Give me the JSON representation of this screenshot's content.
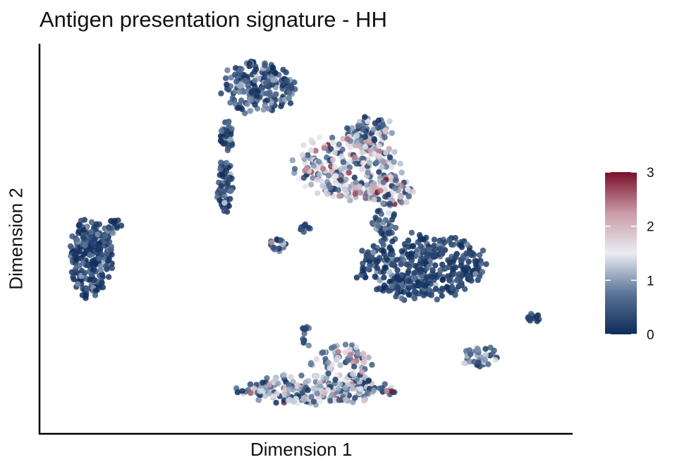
{
  "chart_data": {
    "type": "scatter",
    "title": "Antigen presentation signature - HH",
    "xlabel": "Dimension 1",
    "ylabel": "Dimension 2",
    "color_scale": {
      "min": 0,
      "max": 3,
      "ticks": [
        0,
        1,
        2,
        3
      ],
      "tick_labels": [
        "0",
        "1",
        "2",
        "3"
      ],
      "colors": [
        "#0d2c5a",
        "#5a7396",
        "#e9edf2",
        "#c99aa6",
        "#7a0f2a"
      ],
      "placement": "right"
    },
    "grid": false,
    "axis_ticks_shown": false,
    "clusters": [
      {
        "id": "left-cluster",
        "cx": 0.09,
        "cy": 0.55,
        "rx": 0.04,
        "ry": 0.105,
        "n": 260,
        "mean": 0.2
      },
      {
        "id": "left-cluster-nub",
        "cx": 0.135,
        "cy": 0.47,
        "rx": 0.015,
        "ry": 0.02,
        "n": 20,
        "mean": 0.4
      },
      {
        "id": "top-upper-lobe",
        "cx": 0.41,
        "cy": 0.1,
        "rx": 0.07,
        "ry": 0.07,
        "n": 200,
        "mean": 0.4
      },
      {
        "id": "top-neck",
        "cx": 0.35,
        "cy": 0.23,
        "rx": 0.012,
        "ry": 0.04,
        "n": 35,
        "mean": 0.4
      },
      {
        "id": "top-stem",
        "cx": 0.345,
        "cy": 0.36,
        "rx": 0.015,
        "ry": 0.07,
        "n": 55,
        "mean": 0.3
      },
      {
        "id": "center-upper",
        "cx": 0.58,
        "cy": 0.31,
        "rx": 0.1,
        "ry": 0.09,
        "n": 260,
        "mean": 1.2
      },
      {
        "id": "center-upper-arm",
        "cx": 0.62,
        "cy": 0.22,
        "rx": 0.05,
        "ry": 0.04,
        "n": 70,
        "mean": 1.0
      },
      {
        "id": "center-right-lobe",
        "cx": 0.66,
        "cy": 0.38,
        "rx": 0.045,
        "ry": 0.04,
        "n": 70,
        "mean": 1.3
      },
      {
        "id": "small-center",
        "cx": 0.445,
        "cy": 0.52,
        "rx": 0.018,
        "ry": 0.02,
        "n": 22,
        "mean": 0.8
      },
      {
        "id": "small-center-b",
        "cx": 0.5,
        "cy": 0.475,
        "rx": 0.012,
        "ry": 0.012,
        "n": 10,
        "mean": 0.3
      },
      {
        "id": "right-main",
        "cx": 0.72,
        "cy": 0.575,
        "rx": 0.125,
        "ry": 0.085,
        "n": 420,
        "mean": 0.15
      },
      {
        "id": "right-main-neck",
        "cx": 0.65,
        "cy": 0.46,
        "rx": 0.025,
        "ry": 0.035,
        "n": 40,
        "mean": 0.5
      },
      {
        "id": "far-right-small",
        "cx": 0.935,
        "cy": 0.71,
        "rx": 0.012,
        "ry": 0.015,
        "n": 14,
        "mean": 0.4
      },
      {
        "id": "lower-right-small",
        "cx": 0.83,
        "cy": 0.815,
        "rx": 0.035,
        "ry": 0.028,
        "n": 40,
        "mean": 0.8
      },
      {
        "id": "bottom-band",
        "cx": 0.52,
        "cy": 0.9,
        "rx": 0.15,
        "ry": 0.04,
        "n": 260,
        "mean": 1.0
      },
      {
        "id": "bottom-band-rise",
        "cx": 0.57,
        "cy": 0.83,
        "rx": 0.06,
        "ry": 0.05,
        "n": 70,
        "mean": 1.1
      },
      {
        "id": "bottom-stem",
        "cx": 0.5,
        "cy": 0.76,
        "rx": 0.01,
        "ry": 0.03,
        "n": 14,
        "mean": 0.3
      }
    ]
  }
}
